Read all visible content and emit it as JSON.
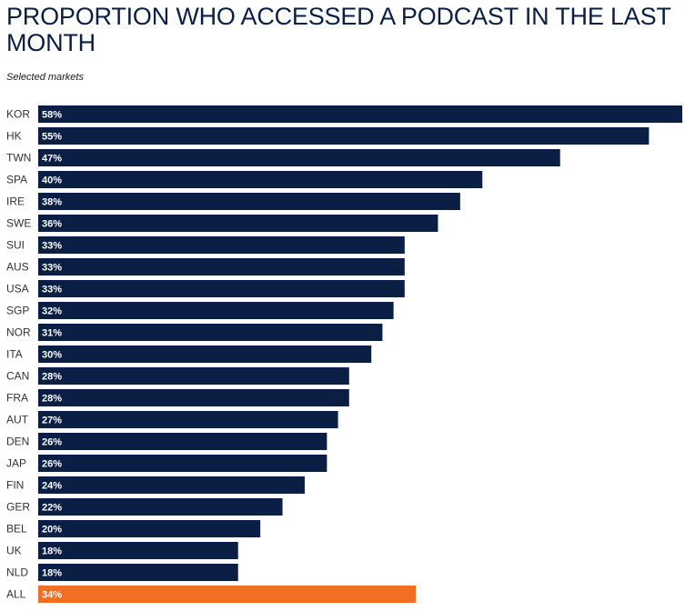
{
  "chart_data": {
    "type": "bar",
    "orientation": "horizontal",
    "title": "PROPORTION WHO ACCESSED A PODCAST IN THE LAST MONTH",
    "subtitle": "Selected markets",
    "categories": [
      "KOR",
      "HK",
      "TWN",
      "SPA",
      "IRE",
      "SWE",
      "SUI",
      "AUS",
      "USA",
      "SGP",
      "NOR",
      "ITA",
      "CAN",
      "FRA",
      "AUT",
      "DEN",
      "JAP",
      "FIN",
      "GER",
      "BEL",
      "UK",
      "NLD",
      "ALL"
    ],
    "values": [
      58,
      55,
      47,
      40,
      38,
      36,
      33,
      33,
      33,
      32,
      31,
      30,
      28,
      28,
      27,
      26,
      26,
      24,
      22,
      20,
      18,
      18,
      34
    ],
    "value_labels": [
      "58%",
      "55%",
      "47%",
      "40%",
      "38%",
      "36%",
      "33%",
      "33%",
      "33%",
      "32%",
      "31%",
      "30%",
      "28%",
      "28%",
      "27%",
      "26%",
      "26%",
      "24%",
      "22%",
      "20%",
      "18%",
      "18%",
      "34%"
    ],
    "xlim": [
      0,
      58
    ],
    "grid": false,
    "legend": "none",
    "colors": {
      "bar": "#0b1f45",
      "highlight": "#f26e22",
      "title": "#0b1f45",
      "value_text": "#ffffff"
    },
    "highlight_category": "ALL"
  }
}
